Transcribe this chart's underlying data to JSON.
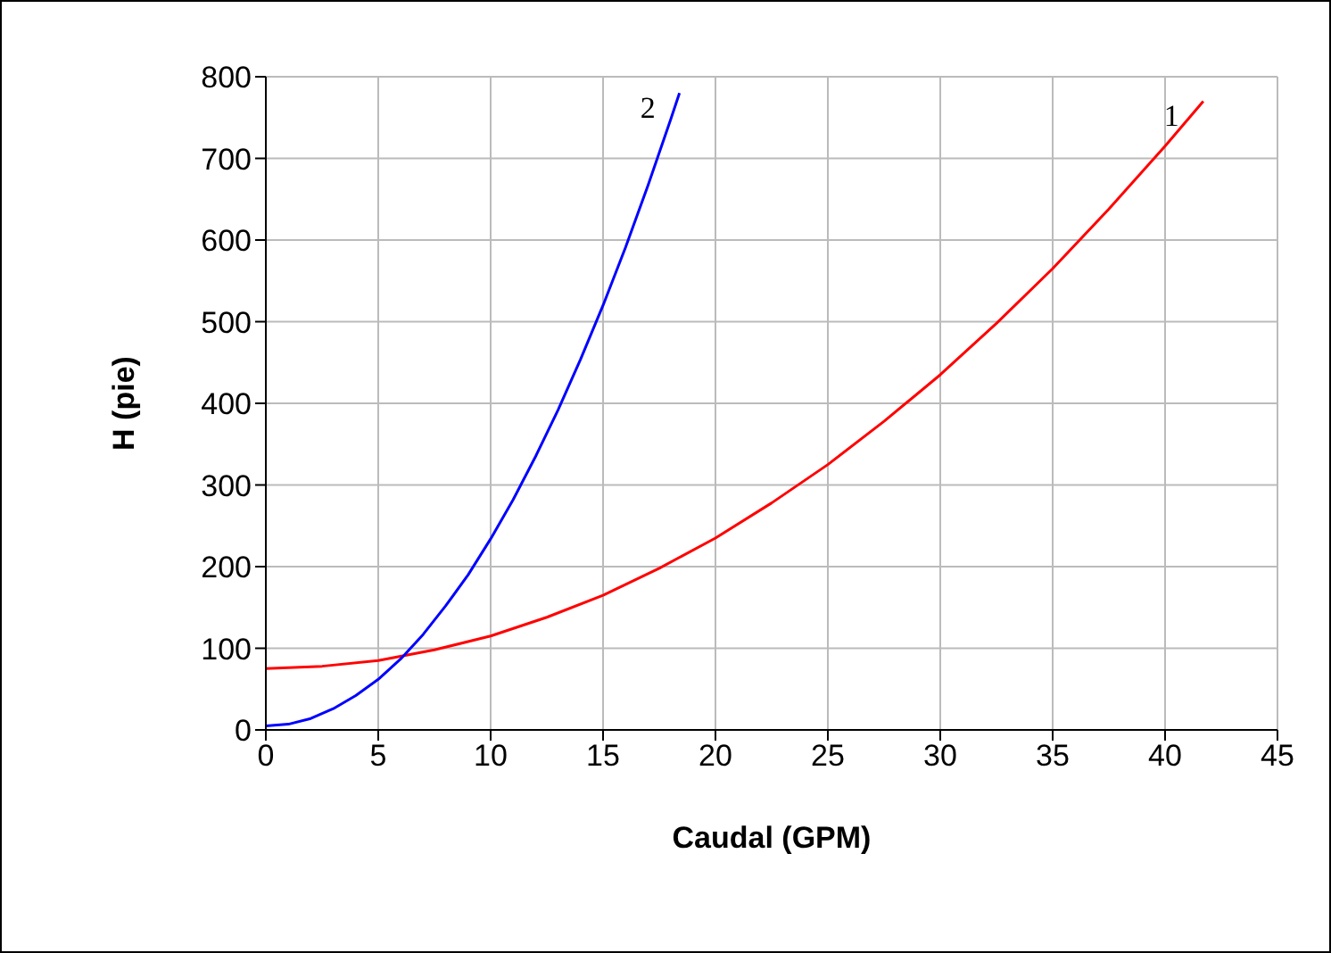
{
  "chart_data": {
    "type": "line",
    "xlabel": "Caudal (GPM)",
    "ylabel": "H (pie)",
    "xlim": [
      0,
      45
    ],
    "xticks": [
      0,
      5,
      10,
      15,
      20,
      25,
      30,
      35,
      40,
      45
    ],
    "ylim": [
      0,
      800
    ],
    "yticks": [
      0,
      100,
      200,
      300,
      400,
      500,
      600,
      700,
      800
    ],
    "grid": true,
    "marker": "none",
    "line_style": "solid",
    "legend": false,
    "series": [
      {
        "name": "1",
        "color": "#ff0000",
        "x": [
          0,
          2.5,
          5,
          7.5,
          10,
          12.5,
          15,
          17.5,
          20,
          22.5,
          25,
          27.5,
          30,
          32.5,
          35,
          37.5,
          40,
          41.7
        ],
        "values": [
          75,
          78,
          85,
          98,
          115,
          138,
          165,
          198,
          235,
          278,
          325,
          378,
          435,
          498,
          565,
          638,
          715,
          770
        ]
      },
      {
        "name": "2",
        "color": "#0000ff",
        "x": [
          0,
          1,
          2,
          3,
          4,
          5,
          6,
          7,
          8,
          9,
          10,
          11,
          12,
          13,
          14,
          15,
          16,
          17,
          18,
          18.4
        ],
        "values": [
          5,
          7,
          14,
          26,
          42,
          62,
          87,
          117,
          152,
          190,
          234,
          282,
          335,
          392,
          454,
          520,
          591,
          667,
          747,
          780
        ]
      }
    ]
  }
}
